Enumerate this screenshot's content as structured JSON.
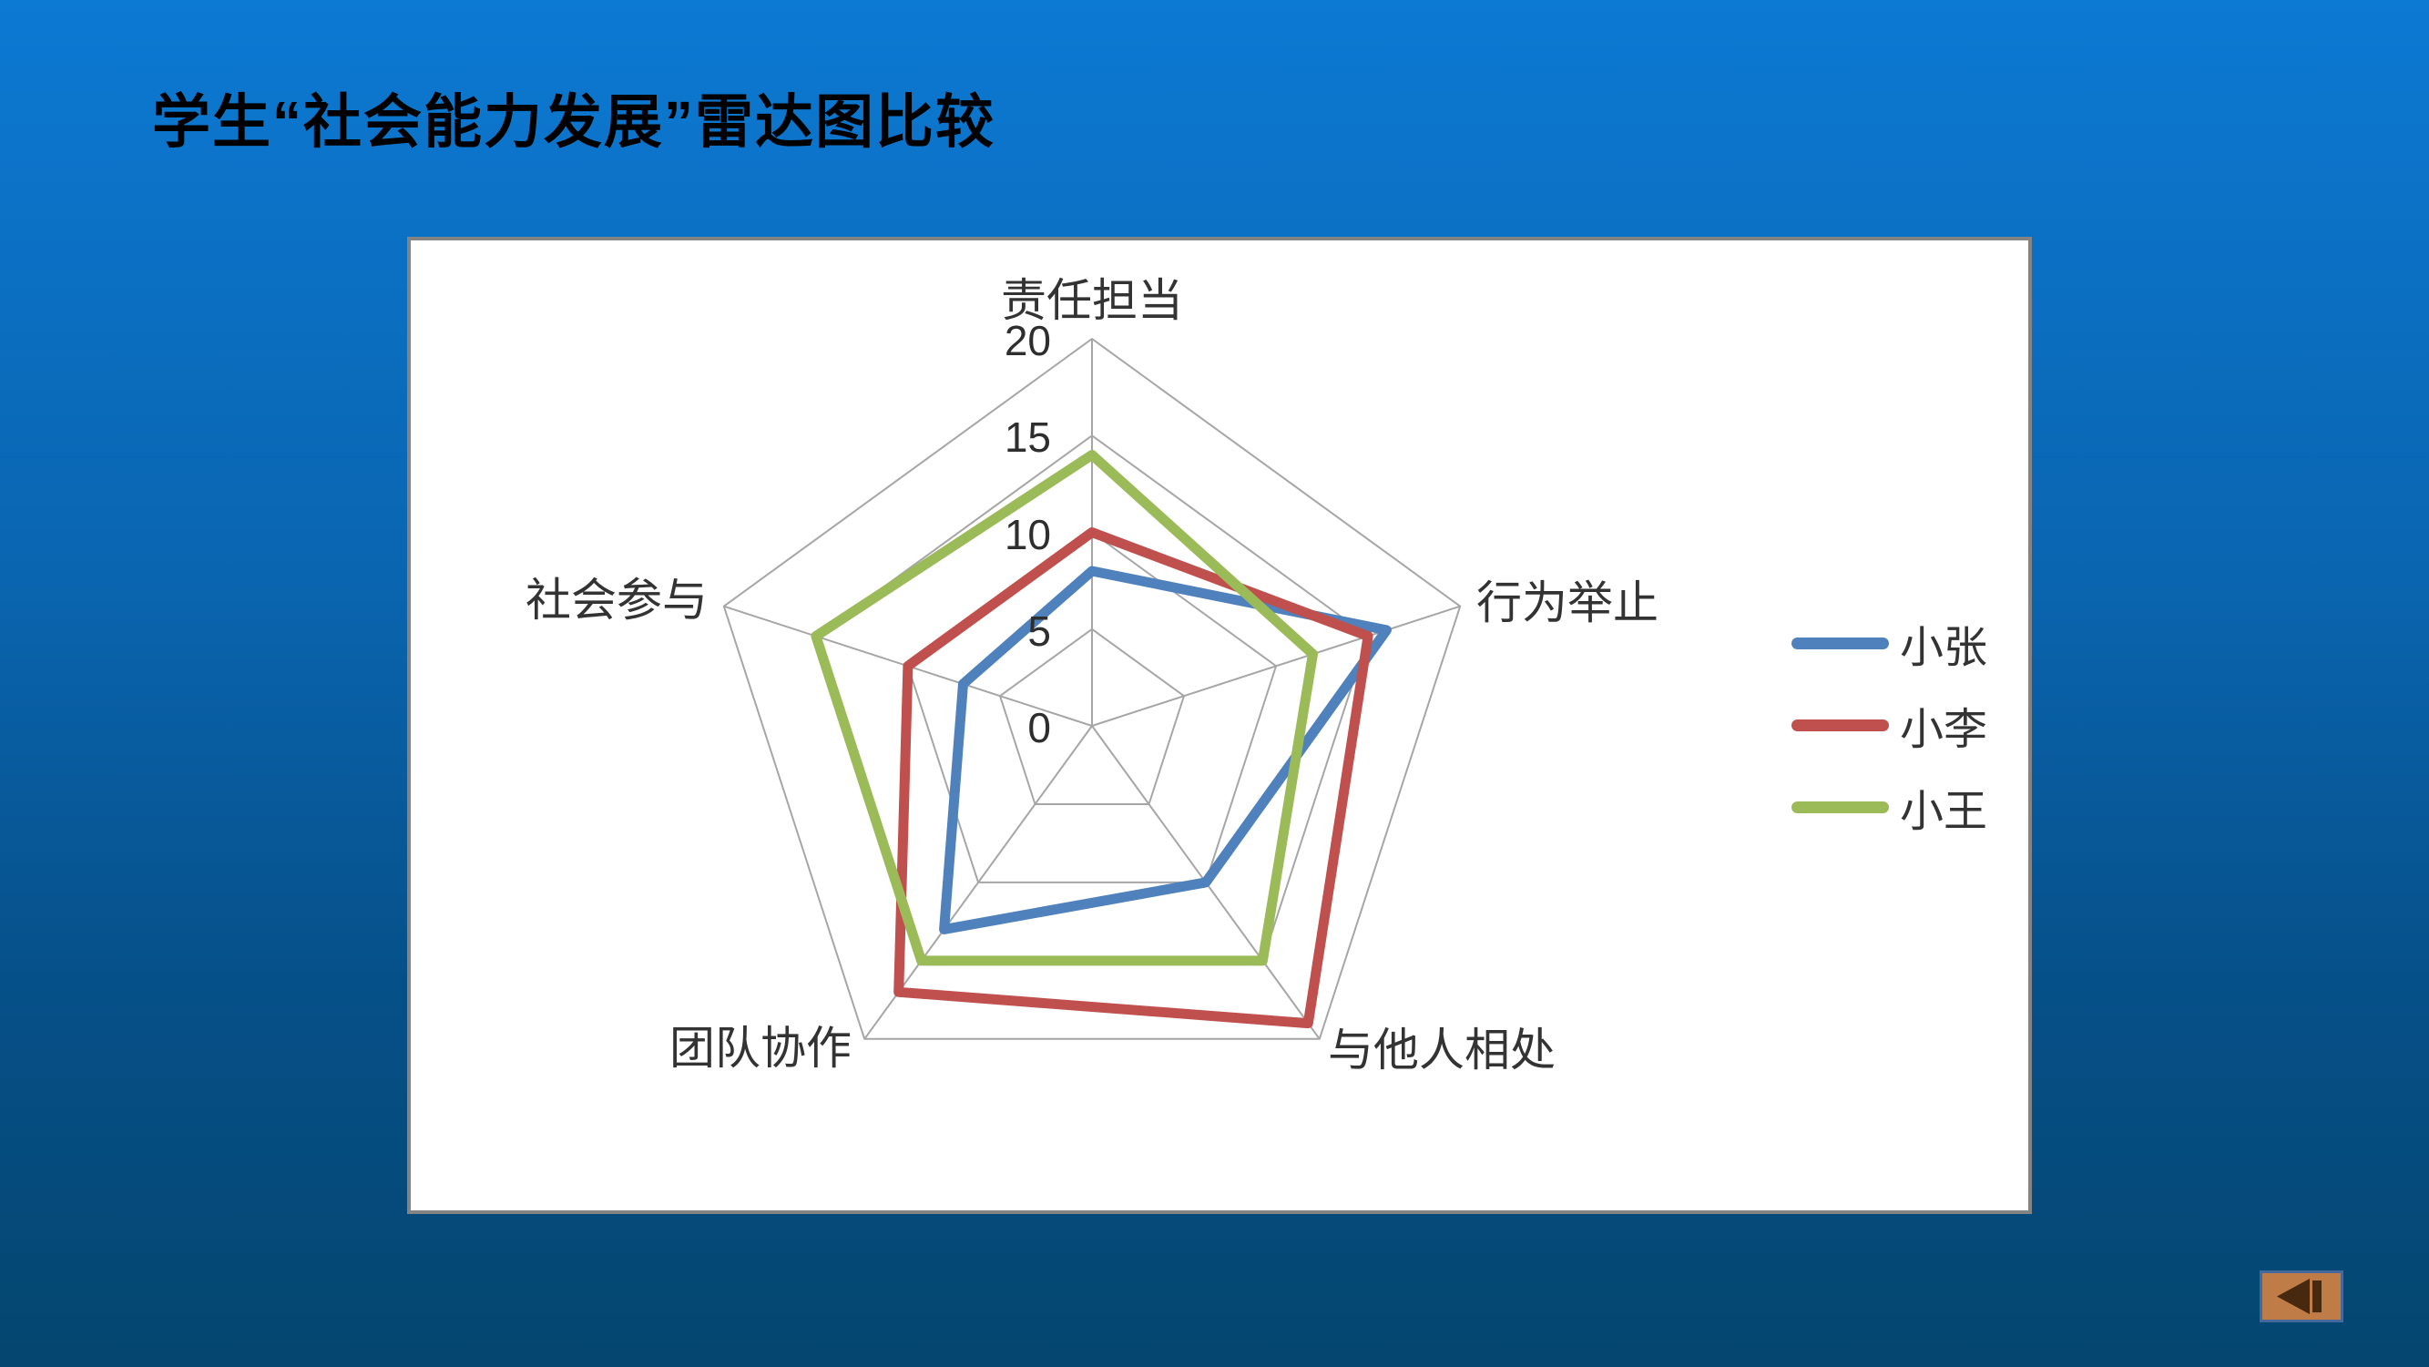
{
  "slide": {
    "title": "学生“社会能力发展”雷达图比较",
    "background_top_color": "#0c79d3",
    "background_bottom_color": "#04466f"
  },
  "chart_data": {
    "type": "radar",
    "title": "",
    "categories": [
      "责任担当",
      "行为举止",
      "与他人相处",
      "团队协作",
      "社会参与"
    ],
    "series": [
      {
        "name": "小张",
        "color": "#4F81BD",
        "values": [
          8,
          16,
          10,
          13,
          7
        ]
      },
      {
        "name": "小李",
        "color": "#C0504D",
        "values": [
          10,
          15,
          19,
          17,
          10
        ]
      },
      {
        "name": "小王",
        "color": "#9BBB59",
        "values": [
          14,
          12,
          15,
          15,
          15
        ]
      }
    ],
    "axis": {
      "min": 0,
      "max": 20,
      "step": 5,
      "tick_labels": [
        "20",
        "15",
        "10",
        "5",
        "0"
      ]
    },
    "grid": true,
    "grid_color": "#a6a6a6",
    "legend_position": "right",
    "plot_background": "#ffffff"
  },
  "back_button": {
    "icon": "previous-slide-icon",
    "fill_color": "#c07c46",
    "glyph_color": "#46290f",
    "border_color": "#47689b"
  }
}
